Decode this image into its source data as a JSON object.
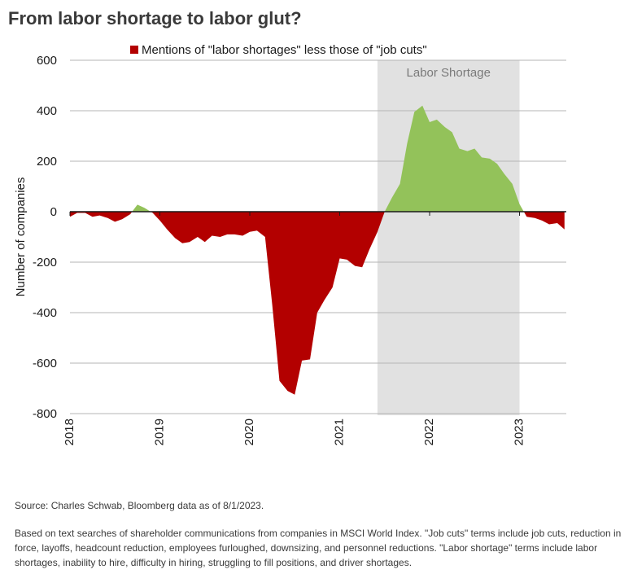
{
  "title": "From labor shortage to labor glut?",
  "colors": {
    "negative": "#b30000",
    "positive": "#93c25a",
    "shade": "#e1e1e1",
    "grid": "#b5b5b5"
  },
  "chart_data": {
    "type": "area",
    "legend": "Mentions of \"labor shortages\" less those of \"job cuts\"",
    "legend_position": "top",
    "ylabel": "Number of companies",
    "ylim": [
      -800,
      600
    ],
    "xlim": [
      2018.0,
      2023.52
    ],
    "y_ticks": [
      "600",
      "400",
      "200",
      "0",
      "-200",
      "-400",
      "-600",
      "-800"
    ],
    "x_ticks": [
      "2018",
      "2019",
      "2020",
      "2021",
      "2022",
      "2023"
    ],
    "grid": true,
    "shaded_region": {
      "label": "Labor Shortage",
      "from": 2021.42,
      "to": 2023.0
    },
    "series": [
      {
        "x": [
          2018.0,
          2018.08,
          2018.17,
          2018.25,
          2018.33,
          2018.42,
          2018.5,
          2018.58,
          2018.67,
          2018.75,
          2018.83,
          2018.92,
          2019.0,
          2019.08,
          2019.17,
          2019.25,
          2019.33,
          2019.42,
          2019.5,
          2019.58,
          2019.67,
          2019.75,
          2019.83,
          2019.92,
          2020.0,
          2020.08,
          2020.17,
          2020.25,
          2020.33,
          2020.42,
          2020.5,
          2020.58,
          2020.67,
          2020.75,
          2020.83,
          2020.92,
          2021.0,
          2021.08,
          2021.17,
          2021.25,
          2021.33,
          2021.42,
          2021.5,
          2021.58,
          2021.67,
          2021.75,
          2021.83,
          2021.92,
          2022.0,
          2022.08,
          2022.17,
          2022.25,
          2022.33,
          2022.42,
          2022.5,
          2022.58,
          2022.67,
          2022.75,
          2022.83,
          2022.92,
          2023.0,
          2023.08,
          2023.17,
          2023.25,
          2023.33,
          2023.42,
          2023.5
        ],
        "values": [
          -20,
          -5,
          -5,
          -20,
          -15,
          -25,
          -40,
          -30,
          -10,
          28,
          15,
          -5,
          -35,
          -70,
          -105,
          -125,
          -120,
          -100,
          -120,
          -95,
          -100,
          -90,
          -90,
          -95,
          -80,
          -75,
          -100,
          -370,
          -670,
          -710,
          -725,
          -590,
          -585,
          -400,
          -350,
          -300,
          -185,
          -190,
          -215,
          -220,
          -150,
          -80,
          0,
          55,
          110,
          270,
          395,
          420,
          355,
          365,
          335,
          315,
          250,
          240,
          250,
          215,
          210,
          190,
          150,
          110,
          30,
          -20,
          -25,
          -35,
          -50,
          -45,
          -70
        ]
      }
    ]
  },
  "source": "Source: Charles Schwab, Bloomberg data as of 8/1/2023.",
  "methodology": "Based on text searches of shareholder communications from companies in MSCI World Index. \"Job cuts\" terms include job cuts, reduction in force, layoffs, headcount reduction, employees furloughed, downsizing, and personnel reductions. \"Labor shortage\" terms include labor shortages, inability to hire, difficulty in hiring, struggling to fill positions, and driver shortages."
}
